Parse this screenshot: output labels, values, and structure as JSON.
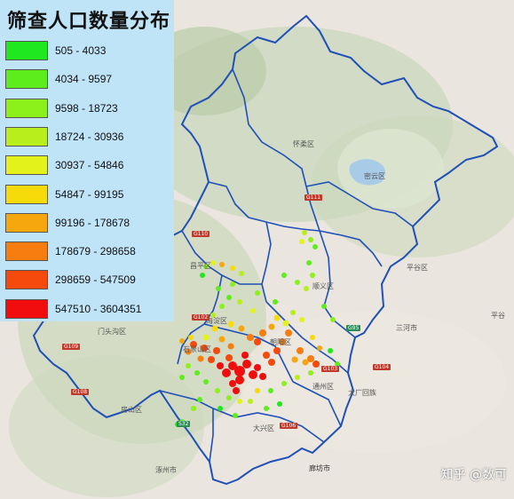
{
  "legend": {
    "title": "筛查人口数量分布",
    "items": [
      {
        "label": "505 - 4033",
        "color": "#1fe81f"
      },
      {
        "label": "4034 - 9597",
        "color": "#5ded1c"
      },
      {
        "label": "9598 - 18723",
        "color": "#8cf01a"
      },
      {
        "label": "18724 - 30936",
        "color": "#b8ee1c"
      },
      {
        "label": "30937 - 54846",
        "color": "#e2f21a"
      },
      {
        "label": "54847 - 99195",
        "color": "#f6da0a"
      },
      {
        "label": "99196 - 178678",
        "color": "#f7a70e"
      },
      {
        "label": "178679 - 298658",
        "color": "#f77d10"
      },
      {
        "label": "298659 - 547509",
        "color": "#f64a0c"
      },
      {
        "label": "547510 - 3604351",
        "color": "#f10d0d"
      }
    ]
  },
  "places": {
    "huairou": "怀柔区",
    "miyun": "密云区",
    "pinggu": "平谷区",
    "changping": "昌平区",
    "shunyi": "顺义区",
    "haidian": "海淀区",
    "mentougou": "门头沟区",
    "chaoyang": "朝阳区",
    "shijingshan": "石景山区",
    "tongzhou": "通州区",
    "fangshan": "房山区",
    "daxing": "大兴区",
    "sanhe": "三河市",
    "zhuozhou": "涿州市",
    "langfang": "廊坊市",
    "dachang": "大厂回族",
    "pingyu": "平谷"
  },
  "roads": {
    "g111": "G111",
    "g110": "G110",
    "g95": "G95",
    "g109": "G109",
    "g108": "G108",
    "g106": "G106",
    "g104": "G104",
    "g103": "G103",
    "g102": "G102",
    "s32": "S32"
  },
  "watermark": {
    "text": "知乎 @数可"
  },
  "colors": {
    "boundary": "#1f4fb8",
    "background": "#eae6df",
    "legend_bg": "#bfe3f7"
  }
}
